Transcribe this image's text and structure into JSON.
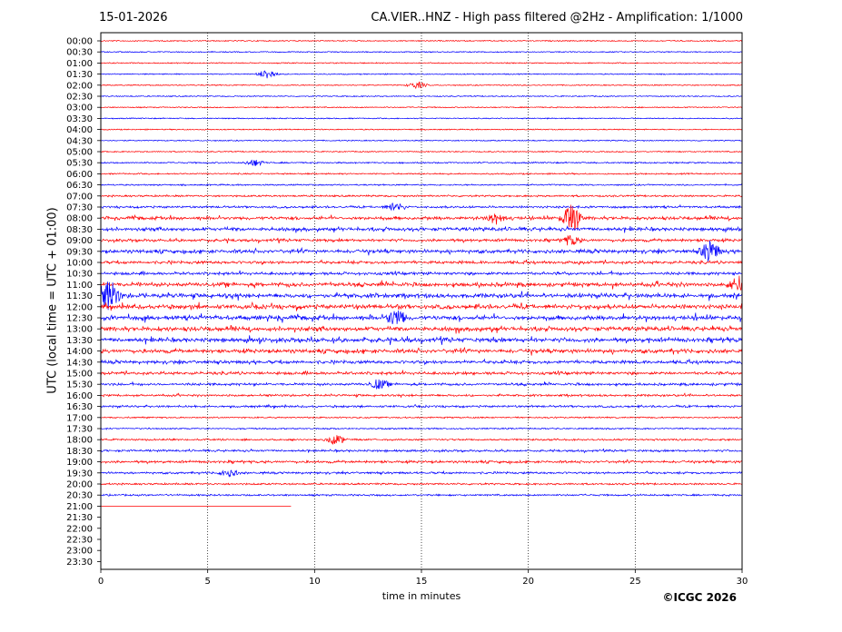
{
  "header": {
    "date": "15-01-2026",
    "title": "CA.VIER..HNZ - High pass filtered @2Hz - Amplification: 1/1000"
  },
  "footer": {
    "copyright": "©ICGC 2026"
  },
  "chart_data": {
    "type": "line",
    "xlabel": "time in minutes",
    "ylabel": "UTC (local time = UTC + 01:00)",
    "xlim": [
      0,
      30
    ],
    "xticks": [
      0,
      5,
      10,
      15,
      20,
      25,
      30
    ],
    "grid": "vertical dotted at 5-minute ticks",
    "colors": {
      "red": "#ff0000",
      "blue": "#0000ff"
    },
    "series_color_order": [
      "red",
      "blue"
    ],
    "rows": [
      "00:00",
      "00:30",
      "01:00",
      "01:30",
      "02:00",
      "02:30",
      "03:00",
      "03:30",
      "04:00",
      "04:30",
      "05:00",
      "05:30",
      "06:00",
      "06:30",
      "07:00",
      "07:30",
      "08:00",
      "08:30",
      "09:00",
      "09:30",
      "10:00",
      "10:30",
      "11:00",
      "11:30",
      "12:00",
      "12:30",
      "13:00",
      "13:30",
      "14:00",
      "14:30",
      "15:00",
      "15:30",
      "16:00",
      "16:30",
      "17:00",
      "17:30",
      "18:00",
      "18:30",
      "19:00",
      "19:30",
      "20:00",
      "20:30",
      "21:00",
      "21:30",
      "22:00",
      "22:30",
      "23:00",
      "23:30"
    ],
    "noise_level": [
      0.1,
      0.1,
      0.1,
      0.1,
      0.1,
      0.1,
      0.1,
      0.1,
      0.1,
      0.1,
      0.1,
      0.2,
      0.2,
      0.2,
      0.3,
      0.4,
      0.7,
      0.8,
      0.6,
      0.8,
      0.6,
      0.6,
      0.9,
      1.0,
      1.0,
      1.0,
      1.0,
      1.0,
      0.9,
      0.7,
      0.6,
      0.5,
      0.4,
      0.4,
      0.2,
      0.2,
      0.3,
      0.4,
      0.5,
      0.4,
      0.3,
      0.3,
      0.0,
      0,
      0,
      0,
      0,
      0
    ],
    "events": [
      {
        "row": "01:30",
        "minute": 7.8,
        "amplitude": 0.6
      },
      {
        "row": "02:00",
        "minute": 14.8,
        "amplitude": 0.4
      },
      {
        "row": "05:30",
        "minute": 7.2,
        "amplitude": 0.4
      },
      {
        "row": "07:30",
        "minute": 13.8,
        "amplitude": 0.5
      },
      {
        "row": "08:00",
        "minute": 22.0,
        "amplitude": 1.8
      },
      {
        "row": "08:00",
        "minute": 18.5,
        "amplitude": 0.6
      },
      {
        "row": "09:00",
        "minute": 22.0,
        "amplitude": 0.6
      },
      {
        "row": "09:30",
        "minute": 28.5,
        "amplitude": 1.3
      },
      {
        "row": "11:30",
        "minute": 0.4,
        "amplitude": 2.0
      },
      {
        "row": "11:00",
        "minute": 29.8,
        "amplitude": 1.0
      },
      {
        "row": "12:30",
        "minute": 13.8,
        "amplitude": 1.0
      },
      {
        "row": "15:30",
        "minute": 13.0,
        "amplitude": 0.6
      },
      {
        "row": "18:00",
        "minute": 11.0,
        "amplitude": 0.6
      },
      {
        "row": "19:30",
        "minute": 6.0,
        "amplitude": 0.4
      }
    ],
    "last_row_end_minute": 8.9
  }
}
